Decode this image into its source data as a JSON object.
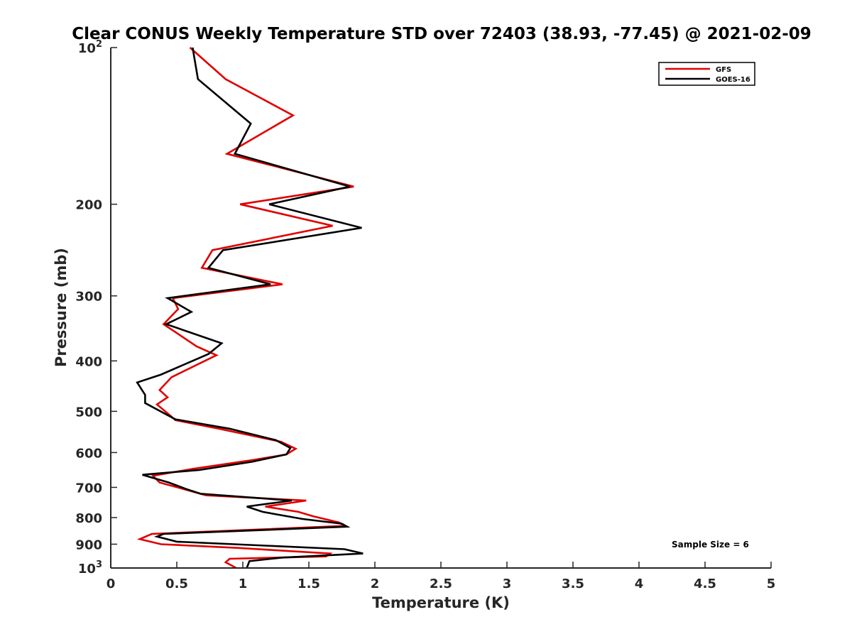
{
  "chart_data": {
    "type": "line",
    "title": "Clear CONUS Weekly Temperature STD over 72403 (38.93, -77.45) @ 2021-02-09",
    "xlabel": "Temperature (K)",
    "ylabel": "Pressure (mb)",
    "xlim": [
      0,
      5
    ],
    "ylim": [
      100,
      1000
    ],
    "y_scale": "log",
    "y_reversed": true,
    "x_ticks": [
      0,
      0.5,
      1,
      1.5,
      2,
      2.5,
      3,
      3.5,
      4,
      4.5,
      5
    ],
    "x_tick_labels": [
      "0",
      "0.5",
      "1",
      "1.5",
      "2",
      "2.5",
      "3",
      "3.5",
      "4",
      "4.5",
      "5"
    ],
    "y_ticks": [
      100,
      200,
      300,
      400,
      500,
      600,
      700,
      800,
      900,
      1000
    ],
    "y_tick_labels": [
      {
        "base": "10",
        "sup": "2"
      },
      {
        "base": "200"
      },
      {
        "base": "300"
      },
      {
        "base": "400"
      },
      {
        "base": "500"
      },
      {
        "base": "600"
      },
      {
        "base": "700"
      },
      {
        "base": "800"
      },
      {
        "base": "900"
      },
      {
        "base": "10",
        "sup": "3"
      }
    ],
    "legend": {
      "placement": "top-right"
    },
    "grid": false,
    "annotation": "Sample Size = 6",
    "series": [
      {
        "name": "GFS",
        "color": "#e00000",
        "points": [
          [
            0.6,
            100
          ],
          [
            0.87,
            115
          ],
          [
            1.38,
            135
          ],
          [
            0.88,
            160
          ],
          [
            1.84,
            185
          ],
          [
            0.98,
            200
          ],
          [
            1.68,
            220
          ],
          [
            0.77,
            245
          ],
          [
            0.69,
            265
          ],
          [
            1.3,
            285
          ],
          [
            0.47,
            303
          ],
          [
            0.51,
            318
          ],
          [
            0.4,
            340
          ],
          [
            0.65,
            375
          ],
          [
            0.8,
            390
          ],
          [
            0.46,
            430
          ],
          [
            0.37,
            455
          ],
          [
            0.43,
            470
          ],
          [
            0.35,
            485
          ],
          [
            0.46,
            512
          ],
          [
            0.49,
            520
          ],
          [
            0.82,
            540
          ],
          [
            1.29,
            572
          ],
          [
            1.4,
            590
          ],
          [
            1.33,
            605
          ],
          [
            1.08,
            620
          ],
          [
            0.62,
            645
          ],
          [
            0.32,
            665
          ],
          [
            0.37,
            685
          ],
          [
            0.55,
            705
          ],
          [
            0.72,
            725
          ],
          [
            1.48,
            742
          ],
          [
            1.17,
            762
          ],
          [
            1.42,
            780
          ],
          [
            1.53,
            795
          ],
          [
            1.73,
            818
          ],
          [
            1.77,
            830
          ],
          [
            0.31,
            860
          ],
          [
            0.22,
            880
          ],
          [
            0.38,
            900
          ],
          [
            0.96,
            915
          ],
          [
            1.66,
            938
          ],
          [
            1.63,
            950
          ],
          [
            0.9,
            960
          ],
          [
            0.87,
            975
          ],
          [
            0.95,
            1000
          ]
        ]
      },
      {
        "name": "GOES-16",
        "color": "#000000",
        "points": [
          [
            0.62,
            100
          ],
          [
            0.66,
            115
          ],
          [
            1.06,
            140
          ],
          [
            0.94,
            160
          ],
          [
            1.81,
            185
          ],
          [
            1.2,
            200
          ],
          [
            1.9,
            222
          ],
          [
            0.85,
            245
          ],
          [
            0.74,
            265
          ],
          [
            1.21,
            285
          ],
          [
            0.43,
            303
          ],
          [
            0.61,
            322
          ],
          [
            0.42,
            340
          ],
          [
            0.84,
            370
          ],
          [
            0.74,
            388
          ],
          [
            0.38,
            425
          ],
          [
            0.2,
            440
          ],
          [
            0.26,
            465
          ],
          [
            0.26,
            482
          ],
          [
            0.49,
            518
          ],
          [
            0.9,
            540
          ],
          [
            1.25,
            568
          ],
          [
            1.36,
            588
          ],
          [
            1.33,
            605
          ],
          [
            1.07,
            625
          ],
          [
            0.67,
            648
          ],
          [
            0.24,
            662
          ],
          [
            0.44,
            685
          ],
          [
            0.57,
            705
          ],
          [
            0.68,
            720
          ],
          [
            1.37,
            742
          ],
          [
            1.03,
            762
          ],
          [
            1.15,
            780
          ],
          [
            1.45,
            805
          ],
          [
            1.75,
            822
          ],
          [
            1.79,
            833
          ],
          [
            0.4,
            860
          ],
          [
            0.35,
            870
          ],
          [
            0.5,
            890
          ],
          [
            1.77,
            920
          ],
          [
            1.91,
            938
          ],
          [
            1.3,
            955
          ],
          [
            1.05,
            970
          ],
          [
            1.03,
            1000
          ]
        ]
      }
    ]
  }
}
